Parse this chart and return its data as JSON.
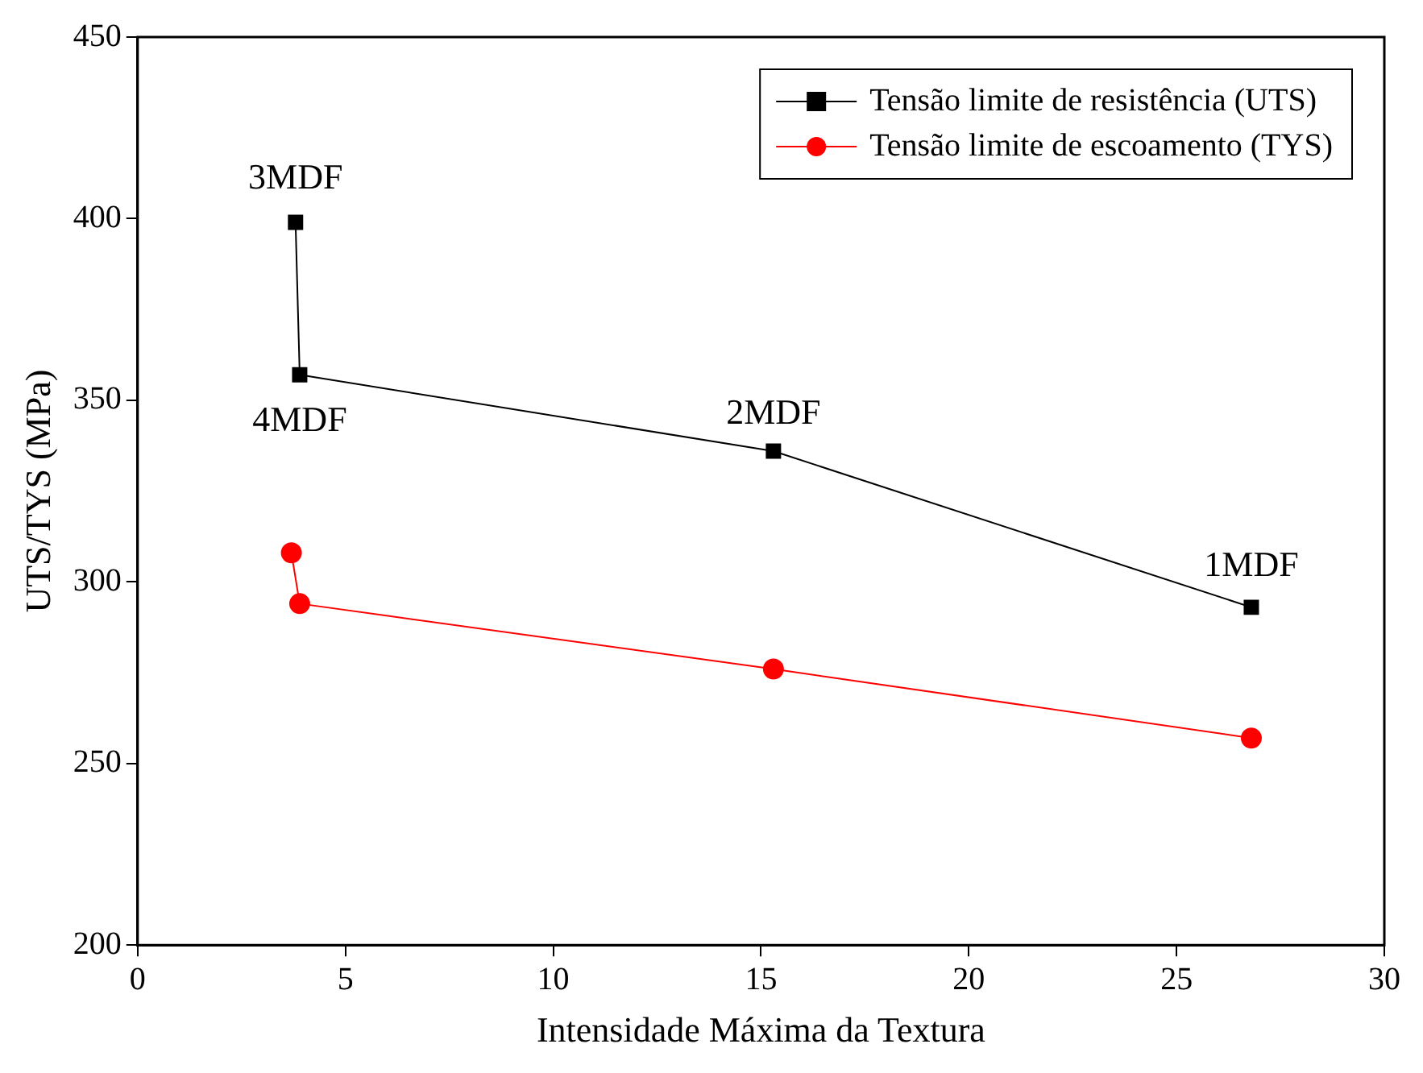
{
  "chart_data": {
    "type": "line",
    "xlabel": "Intensidade Máxima da Textura",
    "ylabel": "UTS/TYS (MPa)",
    "xlim": [
      0,
      30
    ],
    "xticks": [
      0,
      5,
      10,
      15,
      20,
      25,
      30
    ],
    "ylim": [
      200,
      450
    ],
    "yticks": [
      200,
      250,
      300,
      350,
      400,
      450
    ],
    "grid": false,
    "legend": "top right",
    "series": [
      {
        "name": "Tensão limite de resistência (UTS)",
        "color": "#000000",
        "marker": "square",
        "x": [
          3.8,
          3.9,
          15.3,
          26.8
        ],
        "values": [
          399,
          357,
          336,
          293
        ]
      },
      {
        "name": "Tensão limite de escoamento (TYS)",
        "color": "#ff0000",
        "marker": "circle",
        "x": [
          3.7,
          3.9,
          15.3,
          26.8
        ],
        "values": [
          308,
          294,
          276,
          257
        ]
      }
    ],
    "annotations": [
      {
        "text": "3MDF",
        "x": 3.8,
        "y": 399
      },
      {
        "text": "4MDF",
        "x": 3.9,
        "y": 357
      },
      {
        "text": "2MDF",
        "x": 15.3,
        "y": 336
      },
      {
        "text": "1MDF",
        "x": 26.8,
        "y": 293
      }
    ]
  }
}
